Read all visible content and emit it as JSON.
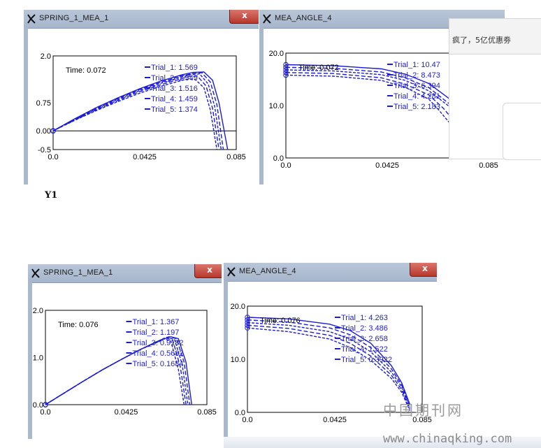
{
  "windows": [
    {
      "title": "SPRING_1_MEA_1",
      "close_label": "x",
      "time_text": "Time:  0.072",
      "y_ticks": [
        "2.0",
        "0.75",
        "0.00",
        "-0.5"
      ],
      "x_ticks": [
        "0.0",
        "0.0425",
        "0.085"
      ],
      "legend": [
        {
          "name": "Trial_1:",
          "value": "1.569"
        },
        {
          "name": "Trial_2:",
          "value": "1.549"
        },
        {
          "name": "Trial_3:",
          "value": "1.516"
        },
        {
          "name": "Trial_4:",
          "value": "1.459"
        },
        {
          "name": "Trial_5:",
          "value": "1.374"
        }
      ]
    },
    {
      "title": "MEA_ANGLE_4",
      "time_text": "Time:  0.072",
      "y_ticks": [
        "20.0",
        "10.0",
        "0.0"
      ],
      "x_ticks": [
        "0.0",
        "0.0425",
        "0.085"
      ],
      "legend": [
        {
          "name": "Trial_1:",
          "value": "10.47"
        },
        {
          "name": "Trial_2:",
          "value": "8.473"
        },
        {
          "name": "Trial_3:",
          "value": "6.394"
        },
        {
          "name": "Trial_4:",
          "value": "4.281"
        },
        {
          "name": "Trial_5:",
          "value": "2.183"
        }
      ]
    },
    {
      "title": "SPRING_1_MEA_1",
      "close_label": "x",
      "time_text": "Time:  0.076",
      "y_ticks": [
        "2.0",
        "1.0",
        "0.0"
      ],
      "x_ticks": [
        "0.0",
        "0.0425",
        "0.085"
      ],
      "legend": [
        {
          "name": "Trial_1:",
          "value": "1.367"
        },
        {
          "name": "Trial_2:",
          "value": "1.197"
        },
        {
          "name": "Trial_3:",
          "value": "0.9182"
        },
        {
          "name": "Trial_4:",
          "value": "0.5682"
        },
        {
          "name": "Trial_5:",
          "value": "0.1684"
        }
      ]
    },
    {
      "title": "MEA_ANGLE_4",
      "close_label": "x",
      "time_text": "Time:  0.076",
      "y_ticks": [
        "20.0",
        "10.0",
        "0.0"
      ],
      "x_ticks": [
        "0.0",
        "0.0425",
        "0.085"
      ],
      "legend": [
        {
          "name": "Trial_1:",
          "value": "4.263"
        },
        {
          "name": "Trial_2:",
          "value": "3.486"
        },
        {
          "name": "Trial_3:",
          "value": "2.658"
        },
        {
          "name": "Trial_4:",
          "value": "1.522"
        },
        {
          "name": "Trial_5:",
          "value": "0.3922"
        }
      ]
    }
  ],
  "side_notice": {
    "text": "疯了，5亿优惠劵"
  },
  "caption": "Y1",
  "watermark": {
    "cn": "中国期刊网",
    "url": "www.chinaqking.com"
  },
  "colors": {
    "curve": "#1c1cd6",
    "axis": "#000000",
    "titlebar": "#b3c1d6",
    "close": "#c0483d"
  },
  "chart_data": [
    {
      "type": "line",
      "title": "SPRING_1_MEA_1",
      "xlim": [
        0,
        0.085
      ],
      "ylim": [
        -0.5,
        2.0
      ],
      "series": [
        {
          "name": "Trial_1",
          "x": [
            0,
            0.01,
            0.02,
            0.03,
            0.04,
            0.05,
            0.06,
            0.065,
            0.07,
            0.074,
            0.077,
            0.081
          ],
          "y": [
            0,
            0.32,
            0.62,
            0.88,
            1.12,
            1.33,
            1.5,
            1.56,
            1.57,
            1.35,
            0.75,
            -0.5
          ]
        },
        {
          "name": "Trial_2",
          "x": [
            0,
            0.01,
            0.02,
            0.03,
            0.04,
            0.05,
            0.06,
            0.065,
            0.069,
            0.073,
            0.076,
            0.079
          ],
          "y": [
            0,
            0.31,
            0.6,
            0.86,
            1.1,
            1.3,
            1.47,
            1.53,
            1.55,
            1.3,
            0.7,
            -0.5
          ]
        },
        {
          "name": "Trial_3",
          "x": [
            0,
            0.01,
            0.02,
            0.03,
            0.04,
            0.05,
            0.06,
            0.064,
            0.068,
            0.072,
            0.075,
            0.078
          ],
          "y": [
            0,
            0.3,
            0.58,
            0.84,
            1.07,
            1.27,
            1.44,
            1.5,
            1.52,
            1.25,
            0.65,
            -0.5
          ]
        },
        {
          "name": "Trial_4",
          "x": [
            0,
            0.01,
            0.02,
            0.03,
            0.04,
            0.05,
            0.06,
            0.063,
            0.067,
            0.071,
            0.074,
            0.077
          ],
          "y": [
            0,
            0.29,
            0.56,
            0.81,
            1.04,
            1.23,
            1.4,
            1.45,
            1.46,
            1.2,
            0.6,
            -0.5
          ]
        },
        {
          "name": "Trial_5",
          "x": [
            0,
            0.01,
            0.02,
            0.03,
            0.04,
            0.05,
            0.06,
            0.062,
            0.066,
            0.07,
            0.073,
            0.076
          ],
          "y": [
            0,
            0.28,
            0.54,
            0.78,
            1.0,
            1.19,
            1.35,
            1.38,
            1.37,
            1.15,
            0.55,
            -0.5
          ]
        }
      ]
    },
    {
      "type": "line",
      "title": "MEA_ANGLE_4",
      "xlim": [
        0,
        0.085
      ],
      "ylim": [
        0,
        20.0
      ],
      "series": [
        {
          "name": "Trial_1",
          "x": [
            0,
            0.02,
            0.04,
            0.05,
            0.06,
            0.07,
            0.075,
            0.08
          ],
          "y": [
            17.8,
            17.6,
            17.0,
            16.0,
            14.2,
            10.8,
            8.0,
            4.0
          ]
        },
        {
          "name": "Trial_2",
          "x": [
            0,
            0.02,
            0.04,
            0.05,
            0.06,
            0.07,
            0.075,
            0.078
          ],
          "y": [
            17.3,
            17.1,
            16.4,
            15.3,
            13.4,
            9.8,
            7.0,
            4.0
          ]
        },
        {
          "name": "Trial_3",
          "x": [
            0,
            0.02,
            0.04,
            0.05,
            0.06,
            0.068,
            0.073,
            0.076
          ],
          "y": [
            16.8,
            16.6,
            15.9,
            14.8,
            12.8,
            10.0,
            7.0,
            4.0
          ]
        },
        {
          "name": "Trial_4",
          "x": [
            0,
            0.02,
            0.04,
            0.05,
            0.06,
            0.066,
            0.071,
            0.074
          ],
          "y": [
            16.3,
            16.1,
            15.3,
            14.1,
            12.0,
            9.5,
            6.8,
            4.0
          ]
        },
        {
          "name": "Trial_5",
          "x": [
            0,
            0.02,
            0.04,
            0.05,
            0.06,
            0.064,
            0.069,
            0.072
          ],
          "y": [
            15.8,
            15.6,
            14.8,
            13.5,
            11.2,
            9.2,
            6.5,
            4.0
          ]
        }
      ]
    },
    {
      "type": "line",
      "title": "SPRING_1_MEA_1",
      "xlim": [
        0,
        0.085
      ],
      "ylim": [
        0,
        2.0
      ],
      "series": [
        {
          "name": "Trial_1",
          "x": [
            0,
            0.01,
            0.02,
            0.03,
            0.04,
            0.05,
            0.06,
            0.066,
            0.07,
            0.074,
            0.077
          ],
          "y": [
            0,
            0.25,
            0.5,
            0.74,
            0.96,
            1.17,
            1.36,
            1.44,
            1.4,
            0.9,
            0
          ]
        },
        {
          "name": "Trial_2",
          "x": [
            0,
            0.01,
            0.02,
            0.03,
            0.04,
            0.05,
            0.06,
            0.065,
            0.069,
            0.073,
            0.076
          ],
          "y": [
            0,
            0.25,
            0.5,
            0.74,
            0.96,
            1.17,
            1.36,
            1.44,
            1.4,
            0.9,
            0
          ]
        },
        {
          "name": "Trial_3",
          "x": [
            0,
            0.01,
            0.02,
            0.03,
            0.04,
            0.05,
            0.06,
            0.064,
            0.068,
            0.072,
            0.075
          ],
          "y": [
            0,
            0.25,
            0.5,
            0.74,
            0.96,
            1.17,
            1.36,
            1.43,
            1.38,
            0.85,
            0
          ]
        },
        {
          "name": "Trial_4",
          "x": [
            0,
            0.01,
            0.02,
            0.03,
            0.04,
            0.05,
            0.06,
            0.063,
            0.067,
            0.071,
            0.074
          ],
          "y": [
            0,
            0.25,
            0.5,
            0.74,
            0.96,
            1.17,
            1.35,
            1.42,
            1.37,
            0.8,
            0
          ]
        },
        {
          "name": "Trial_5",
          "x": [
            0,
            0.01,
            0.02,
            0.03,
            0.04,
            0.05,
            0.06,
            0.062,
            0.066,
            0.07,
            0.073
          ],
          "y": [
            0,
            0.25,
            0.5,
            0.74,
            0.96,
            1.17,
            1.34,
            1.4,
            1.35,
            0.75,
            0
          ]
        }
      ]
    },
    {
      "type": "line",
      "title": "MEA_ANGLE_4",
      "xlim": [
        0,
        0.085
      ],
      "ylim": [
        0,
        20.0
      ],
      "series": [
        {
          "name": "Trial_1",
          "x": [
            0,
            0.02,
            0.04,
            0.05,
            0.06,
            0.07,
            0.075,
            0.079
          ],
          "y": [
            17.9,
            17.6,
            16.6,
            15.4,
            13.0,
            8.8,
            5.6,
            1.5
          ]
        },
        {
          "name": "Trial_2",
          "x": [
            0,
            0.02,
            0.04,
            0.05,
            0.06,
            0.07,
            0.075,
            0.079
          ],
          "y": [
            17.4,
            17.0,
            15.9,
            14.6,
            12.2,
            8.2,
            5.2,
            1.2
          ]
        },
        {
          "name": "Trial_3",
          "x": [
            0,
            0.02,
            0.04,
            0.05,
            0.06,
            0.07,
            0.075,
            0.079
          ],
          "y": [
            16.9,
            16.4,
            15.2,
            13.8,
            11.4,
            7.6,
            4.8,
            0.9
          ]
        },
        {
          "name": "Trial_4",
          "x": [
            0,
            0.02,
            0.04,
            0.05,
            0.06,
            0.07,
            0.075,
            0.079
          ],
          "y": [
            16.4,
            15.8,
            14.5,
            13.0,
            10.6,
            7.0,
            4.3,
            0.6
          ]
        },
        {
          "name": "Trial_5",
          "x": [
            0,
            0.02,
            0.04,
            0.05,
            0.06,
            0.07,
            0.075,
            0.079
          ],
          "y": [
            15.9,
            15.2,
            13.8,
            12.2,
            9.8,
            6.4,
            3.8,
            0.3
          ]
        }
      ]
    }
  ]
}
